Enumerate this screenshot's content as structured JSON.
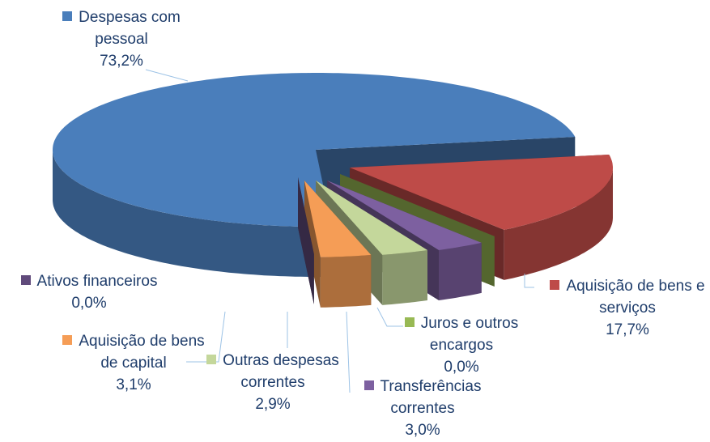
{
  "chart_data": {
    "type": "pie3d",
    "categories": [
      "Despesas com pessoal",
      "Aquisição de bens e serviços",
      "Juros e outros encargos",
      "Transferências correntes",
      "Outras despesas correntes",
      "Aquisição de bens de capital",
      "Ativos financeiros"
    ],
    "values": [
      73.2,
      17.7,
      0.0,
      3.0,
      2.9,
      3.1,
      0.0
    ],
    "value_labels": [
      "73,2%",
      "17,7%",
      "0,0%",
      "3,0%",
      "2,9%",
      "3,1%",
      "0,0%"
    ],
    "colors": [
      "#4a7ebb",
      "#be4b48",
      "#98b954",
      "#7d60a0",
      "#c4d79b",
      "#f59d56",
      "#604a7b"
    ]
  }
}
